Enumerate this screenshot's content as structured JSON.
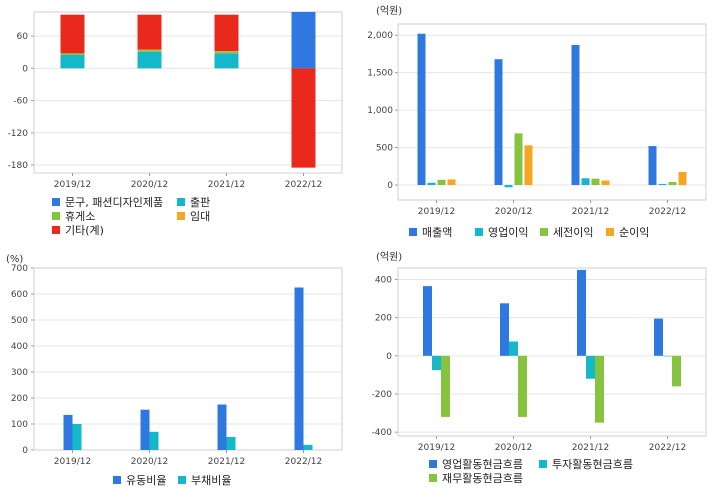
{
  "chart_data": [
    {
      "type": "bar",
      "stacked": true,
      "title": "",
      "unit_label": "",
      "categories": [
        "2019/12",
        "2020/12",
        "2021/12",
        "2022/12"
      ],
      "yticks": [
        60,
        0,
        -60,
        -120,
        -180
      ],
      "ylim": [
        -195,
        105
      ],
      "series": [
        {
          "name": "문구, 패션디자인제품",
          "color": "#2f78e0",
          "values": [
            0,
            0,
            0,
            105
          ]
        },
        {
          "name": "출판",
          "color": "#14b8c8",
          "values": [
            25,
            31,
            28,
            0
          ]
        },
        {
          "name": "휴게소",
          "color": "#86c440",
          "values": [
            3,
            3,
            3,
            0
          ]
        },
        {
          "name": "임대",
          "color": "#f5a623",
          "values": [
            0,
            1,
            1,
            0
          ]
        },
        {
          "name": "기타(계)",
          "color": "#e8291c",
          "values": [
            72,
            65,
            68,
            -185
          ]
        }
      ]
    },
    {
      "type": "bar",
      "title": "",
      "unit_label": "(억원)",
      "categories": [
        "2019/12",
        "2020/12",
        "2021/12",
        "2022/12"
      ],
      "yticks": [
        2000,
        1500,
        1000,
        500,
        0
      ],
      "ytick_labels": [
        "2,000",
        "1,500",
        "1,000",
        "500",
        "0"
      ],
      "ylim": [
        -200,
        2150
      ],
      "series": [
        {
          "name": "매출액",
          "color": "#2f78e0",
          "values": [
            2020,
            1680,
            1870,
            520
          ]
        },
        {
          "name": "영업이익",
          "color": "#14b8c8",
          "values": [
            30,
            -30,
            90,
            15
          ]
        },
        {
          "name": "세전이익",
          "color": "#86c440",
          "values": [
            70,
            690,
            85,
            40
          ]
        },
        {
          "name": "순이익",
          "color": "#f5a623",
          "values": [
            75,
            530,
            60,
            175
          ]
        }
      ]
    },
    {
      "type": "bar",
      "title": "",
      "unit_label": "(%)",
      "categories": [
        "2019/12",
        "2020/12",
        "2021/12",
        "2022/12"
      ],
      "yticks": [
        700,
        600,
        500,
        400,
        300,
        200,
        100,
        0
      ],
      "ylim": [
        0,
        700
      ],
      "series": [
        {
          "name": "유동비율",
          "color": "#2f78e0",
          "values": [
            135,
            155,
            175,
            625
          ]
        },
        {
          "name": "부채비율",
          "color": "#14b8c8",
          "values": [
            100,
            70,
            50,
            20
          ]
        }
      ]
    },
    {
      "type": "bar",
      "title": "",
      "unit_label": "(억원)",
      "categories": [
        "2019/12",
        "2020/12",
        "2021/12",
        "2022/12"
      ],
      "yticks": [
        400,
        200,
        0,
        -200,
        -400
      ],
      "ylim": [
        -420,
        460
      ],
      "series": [
        {
          "name": "영업활동현금흐름",
          "color": "#2f78e0",
          "values": [
            365,
            275,
            450,
            195
          ]
        },
        {
          "name": "투자활동현금흐름",
          "color": "#14b8c8",
          "values": [
            -75,
            75,
            -120,
            0
          ]
        },
        {
          "name": "재무활동현금흐름",
          "color": "#86c440",
          "values": [
            -320,
            -320,
            -350,
            -160
          ]
        }
      ]
    }
  ]
}
